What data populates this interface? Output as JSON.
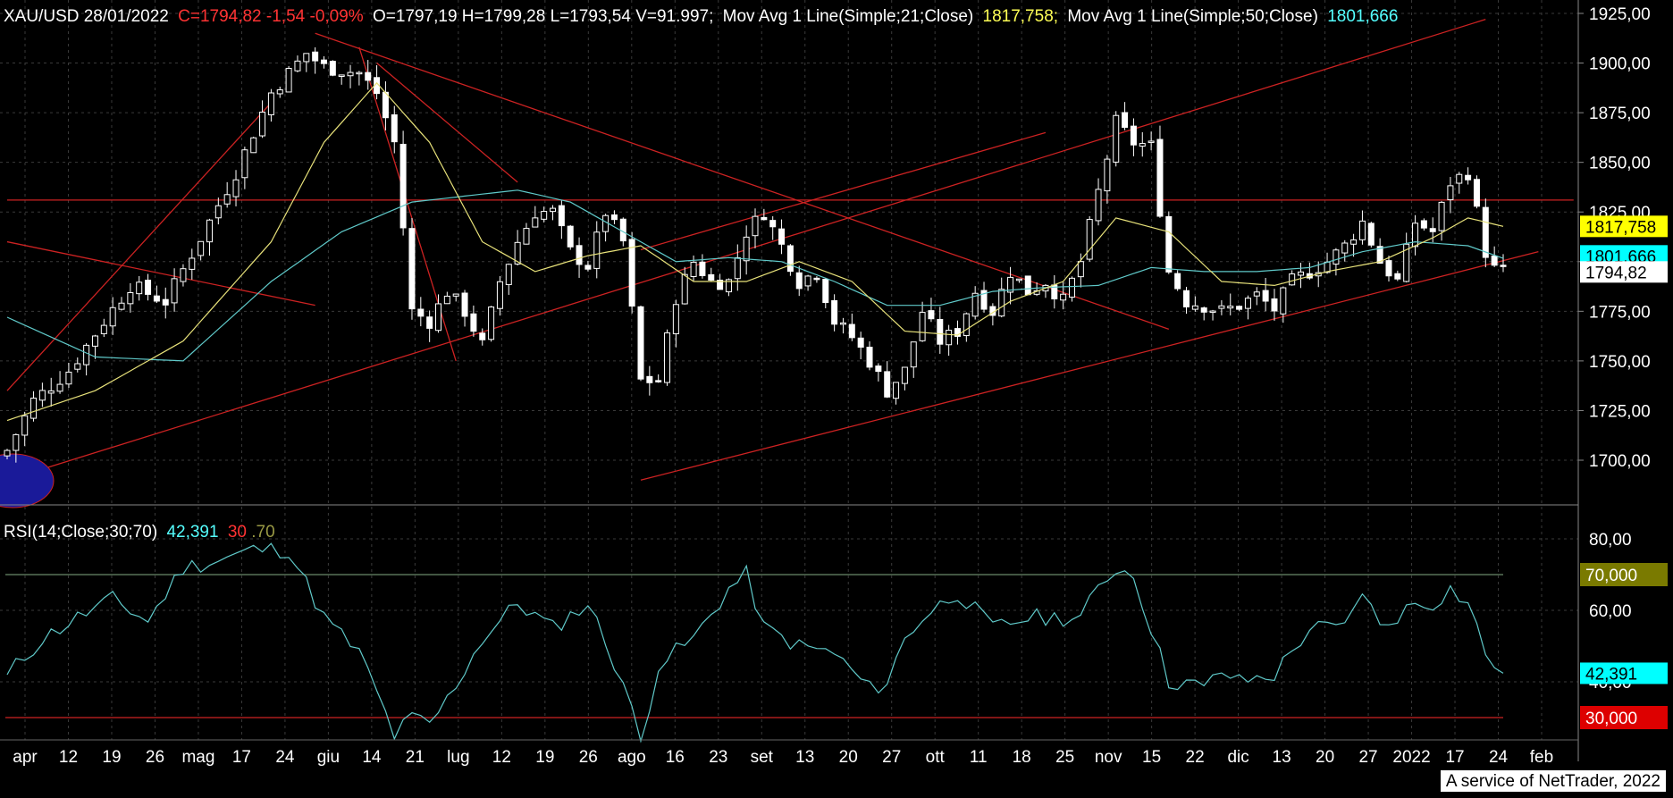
{
  "header": {
    "symbol_date": "XAU/USD 28/01/2022",
    "close_change": "C=1794,82 -1,54 -0,09%",
    "ohlcv": "O=1797,19 H=1799,28 L=1793,54 V=91.997;",
    "ma21_label": "Mov Avg 1 Line(Simple;21;Close)",
    "ma21_value": "1817,758;",
    "ma50_label": "Mov Avg 1 Line(Simple;50;Close)",
    "ma50_value": "1801,666"
  },
  "rsi_header": {
    "label": "RSI(14;Close;30;70)",
    "value": "42,391",
    "low": "30",
    "high": ".70"
  },
  "footer": {
    "text": "A service of NetTrader, 2022"
  },
  "colors": {
    "background": "#000000",
    "grid": "#3a3a3a",
    "candle_up": "#ffffff",
    "candle_down": "#ffffff",
    "ma21": "#e8e27a",
    "ma50": "#5fc9c9",
    "trendline": "#cc2222",
    "rsi": "#5fc9c9",
    "ellipse": "#1a1a99"
  },
  "chart_data": [
    {
      "type": "candlestick",
      "title": "XAU/USD",
      "y_axis_side": "right",
      "ylim": [
        1685,
        1932
      ],
      "y_ticks": [
        "1925,00",
        "1900,00",
        "1875,00",
        "1850,00",
        "1825,00",
        "1800,00",
        "1775,00",
        "1750,00",
        "1725,00",
        "1700,00"
      ],
      "x_tick_labels": [
        "apr",
        "12",
        "19",
        "26",
        "mag",
        "17",
        "24",
        "giu",
        "14",
        "21",
        "lug",
        "12",
        "19",
        "26",
        "ago",
        "16",
        "23",
        "set",
        "13",
        "20",
        "27",
        "ott",
        "11",
        "18",
        "25",
        "nov",
        "15",
        "22",
        "dic",
        "13",
        "20",
        "27",
        "2022",
        "17",
        "24",
        "feb"
      ],
      "price_tags": [
        {
          "value": 1817.758,
          "label": "1817,758",
          "bg": "#ffff00",
          "fg": "#000000"
        },
        {
          "value": 1801.666,
          "label": "1801,666",
          "bg": "#00ffff",
          "fg": "#000000"
        },
        {
          "value": 1794.82,
          "label": "1794,82",
          "bg": "#ffffff",
          "fg": "#000000"
        }
      ],
      "close_anchors": [
        [
          0,
          1705
        ],
        [
          3,
          1730
        ],
        [
          7,
          1745
        ],
        [
          11,
          1770
        ],
        [
          14,
          1788
        ],
        [
          18,
          1780
        ],
        [
          22,
          1812
        ],
        [
          26,
          1845
        ],
        [
          30,
          1885
        ],
        [
          34,
          1905
        ],
        [
          36,
          1898
        ],
        [
          40,
          1895
        ],
        [
          42,
          1885
        ],
        [
          44,
          1860
        ],
        [
          46,
          1775
        ],
        [
          48,
          1770
        ],
        [
          50,
          1785
        ],
        [
          52,
          1775
        ],
        [
          54,
          1758
        ],
        [
          56,
          1790
        ],
        [
          58,
          1810
        ],
        [
          60,
          1825
        ],
        [
          62,
          1825
        ],
        [
          64,
          1805
        ],
        [
          66,
          1798
        ],
        [
          68,
          1825
        ],
        [
          70,
          1810
        ],
        [
          72,
          1740
        ],
        [
          74,
          1740
        ],
        [
          76,
          1782
        ],
        [
          78,
          1800
        ],
        [
          80,
          1790
        ],
        [
          82,
          1790
        ],
        [
          84,
          1815
        ],
        [
          86,
          1825
        ],
        [
          88,
          1808
        ],
        [
          90,
          1790
        ],
        [
          92,
          1795
        ],
        [
          94,
          1770
        ],
        [
          96,
          1762
        ],
        [
          98,
          1750
        ],
        [
          100,
          1735
        ],
        [
          102,
          1745
        ],
        [
          104,
          1775
        ],
        [
          106,
          1760
        ],
        [
          108,
          1765
        ],
        [
          110,
          1785
        ],
        [
          112,
          1775
        ],
        [
          114,
          1795
        ],
        [
          116,
          1785
        ],
        [
          118,
          1790
        ],
        [
          120,
          1780
        ],
        [
          122,
          1800
        ],
        [
          124,
          1835
        ],
        [
          126,
          1870
        ],
        [
          128,
          1860
        ],
        [
          130,
          1858
        ],
        [
          132,
          1795
        ],
        [
          134,
          1780
        ],
        [
          136,
          1778
        ],
        [
          138,
          1775
        ],
        [
          140,
          1778
        ],
        [
          142,
          1783
        ],
        [
          144,
          1776
        ],
        [
          146,
          1790
        ],
        [
          148,
          1795
        ],
        [
          150,
          1800
        ],
        [
          152,
          1808
        ],
        [
          154,
          1820
        ],
        [
          156,
          1800
        ],
        [
          158,
          1790
        ],
        [
          160,
          1820
        ],
        [
          162,
          1815
        ],
        [
          164,
          1840
        ],
        [
          166,
          1845
        ],
        [
          168,
          1805
        ],
        [
          169,
          1796
        ],
        [
          170,
          1794.82
        ]
      ],
      "ma21_anchors": [
        [
          0,
          1720
        ],
        [
          10,
          1735
        ],
        [
          20,
          1760
        ],
        [
          30,
          1810
        ],
        [
          36,
          1860
        ],
        [
          42,
          1890
        ],
        [
          48,
          1860
        ],
        [
          54,
          1810
        ],
        [
          60,
          1795
        ],
        [
          66,
          1803
        ],
        [
          72,
          1808
        ],
        [
          78,
          1790
        ],
        [
          84,
          1790
        ],
        [
          90,
          1800
        ],
        [
          96,
          1790
        ],
        [
          102,
          1765
        ],
        [
          108,
          1763
        ],
        [
          114,
          1780
        ],
        [
          120,
          1790
        ],
        [
          126,
          1822
        ],
        [
          132,
          1815
        ],
        [
          138,
          1790
        ],
        [
          144,
          1788
        ],
        [
          150,
          1795
        ],
        [
          156,
          1800
        ],
        [
          162,
          1812
        ],
        [
          166,
          1822
        ],
        [
          170,
          1817.758
        ]
      ],
      "ma50_anchors": [
        [
          0,
          1772
        ],
        [
          10,
          1752
        ],
        [
          20,
          1750
        ],
        [
          30,
          1790
        ],
        [
          38,
          1815
        ],
        [
          46,
          1830
        ],
        [
          52,
          1833
        ],
        [
          58,
          1836
        ],
        [
          64,
          1830
        ],
        [
          70,
          1815
        ],
        [
          76,
          1800
        ],
        [
          82,
          1802
        ],
        [
          88,
          1800
        ],
        [
          94,
          1790
        ],
        [
          100,
          1778
        ],
        [
          106,
          1778
        ],
        [
          112,
          1785
        ],
        [
          118,
          1787
        ],
        [
          124,
          1788
        ],
        [
          130,
          1797
        ],
        [
          136,
          1795
        ],
        [
          142,
          1795
        ],
        [
          148,
          1797
        ],
        [
          154,
          1805
        ],
        [
          160,
          1810
        ],
        [
          166,
          1808
        ],
        [
          170,
          1801.666
        ]
      ],
      "trendlines": [
        {
          "from": [
            0,
            1690
          ],
          "to": [
            168,
            1922
          ]
        },
        {
          "from": [
            0,
            1735
          ],
          "to": [
            30,
            1880
          ]
        },
        {
          "from": [
            0,
            1810
          ],
          "to": [
            35,
            1778
          ]
        },
        {
          "from": [
            35,
            1915
          ],
          "to": [
            132,
            1766
          ]
        },
        {
          "from": [
            42,
            1900
          ],
          "to": [
            58,
            1840
          ]
        },
        {
          "from": [
            40,
            1908
          ],
          "to": [
            51,
            1750
          ]
        },
        {
          "from": [
            72,
            1690
          ],
          "to": [
            174,
            1805
          ]
        },
        {
          "from": [
            72,
            1806
          ],
          "to": [
            118,
            1865
          ]
        },
        {
          "from": [
            0,
            1831
          ],
          "to": [
            178,
            1831
          ]
        }
      ]
    },
    {
      "type": "line",
      "title": "RSI(14;Close;30;70)",
      "ylim": [
        22,
        88
      ],
      "y_ticks": [
        "80,00",
        "60,00",
        "40,00"
      ],
      "reference_lines": [
        {
          "value": 70,
          "label": "70,000"
        },
        {
          "value": 30,
          "label": "30,000"
        }
      ],
      "last_value": 42.391,
      "last_label": "42,391",
      "rsi_anchors": [
        [
          0,
          42
        ],
        [
          4,
          52
        ],
        [
          8,
          58
        ],
        [
          12,
          63
        ],
        [
          16,
          57
        ],
        [
          20,
          72
        ],
        [
          24,
          74
        ],
        [
          28,
          77
        ],
        [
          32,
          77
        ],
        [
          36,
          58
        ],
        [
          40,
          48
        ],
        [
          42,
          37
        ],
        [
          44,
          25
        ],
        [
          46,
          30
        ],
        [
          48,
          28
        ],
        [
          50,
          35
        ],
        [
          54,
          52
        ],
        [
          58,
          62
        ],
        [
          62,
          55
        ],
        [
          66,
          62
        ],
        [
          70,
          40
        ],
        [
          72,
          23
        ],
        [
          74,
          45
        ],
        [
          78,
          52
        ],
        [
          82,
          66
        ],
        [
          84,
          70
        ],
        [
          86,
          55
        ],
        [
          90,
          50
        ],
        [
          94,
          48
        ],
        [
          98,
          38
        ],
        [
          100,
          40
        ],
        [
          102,
          52
        ],
        [
          104,
          58
        ],
        [
          108,
          65
        ],
        [
          112,
          55
        ],
        [
          116,
          58
        ],
        [
          120,
          58
        ],
        [
          122,
          58
        ],
        [
          124,
          66
        ],
        [
          126,
          72
        ],
        [
          128,
          70
        ],
        [
          130,
          55
        ],
        [
          132,
          40
        ],
        [
          134,
          40
        ],
        [
          136,
          38
        ],
        [
          138,
          43
        ],
        [
          140,
          40
        ],
        [
          144,
          42
        ],
        [
          148,
          55
        ],
        [
          152,
          55
        ],
        [
          154,
          66
        ],
        [
          156,
          55
        ],
        [
          160,
          62
        ],
        [
          162,
          62
        ],
        [
          164,
          66
        ],
        [
          166,
          62
        ],
        [
          168,
          48
        ],
        [
          170,
          42.391
        ]
      ]
    }
  ]
}
